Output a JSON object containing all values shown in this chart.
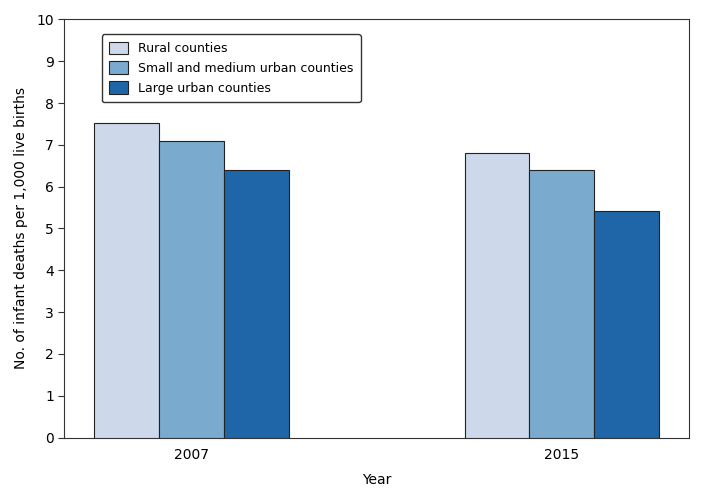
{
  "title": "",
  "xlabel": "Year",
  "ylabel": "No. of infant deaths per 1,000 live births",
  "years": [
    "2007",
    "2015"
  ],
  "categories": [
    "Rural counties",
    "Small and medium urban counties",
    "Large urban counties"
  ],
  "values": {
    "2007": [
      7.52,
      7.09,
      6.41
    ],
    "2015": [
      6.8,
      6.41,
      5.42
    ]
  },
  "bar_colors": [
    "#cdd8ea",
    "#7aabcf",
    "#1f66a8"
  ],
  "bar_edge_color": "#222222",
  "ylim": [
    0,
    10
  ],
  "yticks": [
    0,
    1,
    2,
    3,
    4,
    5,
    6,
    7,
    8,
    9,
    10
  ],
  "bar_width": 0.28,
  "group_centers": [
    1.0,
    2.6
  ],
  "figsize": [
    7.03,
    5.01
  ],
  "dpi": 100,
  "background_color": "#ffffff",
  "legend_fontsize": 9,
  "axis_fontsize": 10,
  "tick_fontsize": 10
}
